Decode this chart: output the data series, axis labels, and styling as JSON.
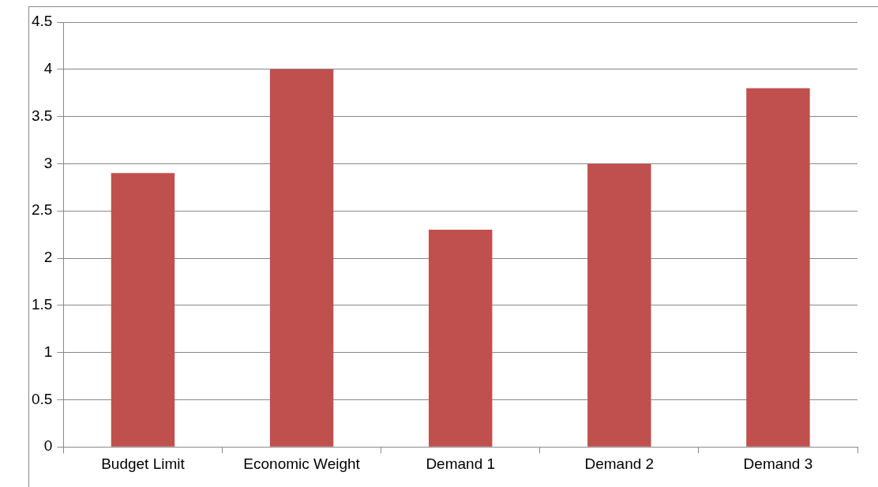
{
  "chart_data": {
    "type": "bar",
    "categories": [
      "Budget Limit",
      "Economic Weight",
      "Demand 1",
      "Demand 2",
      "Demand 3"
    ],
    "values": [
      2.9,
      4,
      2.3,
      3,
      3.8
    ],
    "color": "#c0504d",
    "ylim": [
      0,
      4.5
    ],
    "yticks": [
      0,
      0.5,
      1,
      1.5,
      2,
      2.5,
      3,
      3.5,
      4,
      4.5
    ],
    "grid": "y",
    "legend": false
  }
}
